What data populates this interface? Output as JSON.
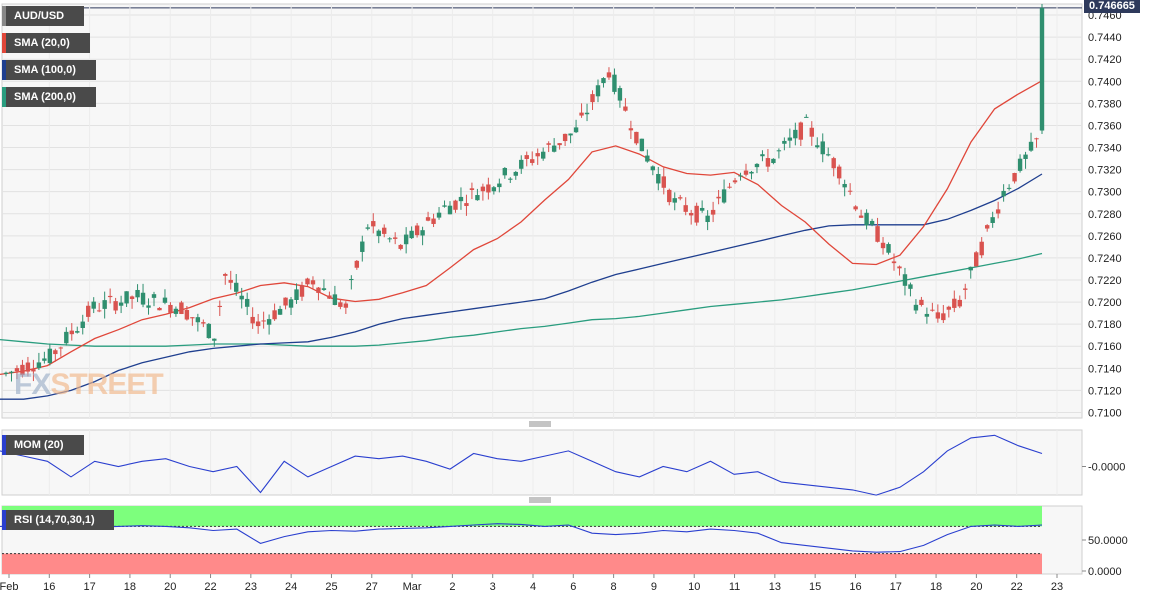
{
  "legend": {
    "symbol": "AUD/USD",
    "sma20": "SMA (20,0)",
    "sma100": "SMA (100,0)",
    "sma200": "SMA (200,0)",
    "mom": "MOM (20)",
    "rsi": "RSI (14,70,30,1)"
  },
  "current_price": "0.746665",
  "watermark": {
    "fx": "FX",
    "street": "STREET"
  },
  "colors": {
    "bull": "#2f8f6f",
    "bear": "#d9534f",
    "sma20": "#e0473a",
    "sma100": "#1f3f8f",
    "sma200": "#2a9d7f",
    "mom": "#2a3fcf",
    "rsi": "#2a3fcf",
    "rsi_over": "#7dff7d",
    "rsi_under": "#ff8a8a"
  },
  "chart_data": {
    "type": "candlestick",
    "symbol": "AUD/USD",
    "ylim": [
      0.7095,
      0.747
    ],
    "yticks": [
      "0.7100",
      "0.7120",
      "0.7140",
      "0.7160",
      "0.7180",
      "0.7200",
      "0.7220",
      "0.7240",
      "0.7260",
      "0.7280",
      "0.7300",
      "0.7320",
      "0.7340",
      "0.7360",
      "0.7380",
      "0.7400",
      "0.7420",
      "0.7440",
      "0.7460"
    ],
    "xticks": [
      "Feb",
      "16",
      "17",
      "18",
      "20",
      "22",
      "23",
      "24",
      "25",
      "27",
      "Mar",
      "2",
      "3",
      "4",
      "6",
      "8",
      "9",
      "10",
      "11",
      "13",
      "15",
      "16",
      "17",
      "18",
      "20",
      "22",
      "23"
    ],
    "sma20_label": "SMA (20,0)",
    "sma20": [
      [
        0.7137,
        0.7132
      ],
      [
        0.714,
        0.7135
      ],
      [
        0.7145,
        0.714
      ],
      [
        0.716,
        0.715
      ],
      [
        0.7172,
        0.7162
      ],
      [
        0.718,
        0.717
      ],
      [
        0.719,
        0.7178
      ],
      [
        0.7193,
        0.7185
      ],
      [
        0.72,
        0.719
      ],
      [
        0.721,
        0.7196
      ],
      [
        0.7216,
        0.72
      ],
      [
        0.7225,
        0.7205
      ],
      [
        0.7225,
        0.721
      ],
      [
        0.722,
        0.7208
      ],
      [
        0.7207,
        0.72
      ],
      [
        0.7203,
        0.7198
      ],
      [
        0.7205,
        0.72
      ],
      [
        0.7212,
        0.7205
      ],
      [
        0.722,
        0.721
      ],
      [
        0.724,
        0.7222
      ],
      [
        0.726,
        0.7235
      ],
      [
        0.727,
        0.7245
      ],
      [
        0.7285,
        0.726
      ],
      [
        0.7305,
        0.728
      ],
      [
        0.7322,
        0.73
      ],
      [
        0.7347,
        0.7325
      ],
      [
        0.7345,
        0.7338
      ],
      [
        0.7338,
        0.733
      ],
      [
        0.7325,
        0.732
      ],
      [
        0.7318,
        0.7315
      ],
      [
        0.7318,
        0.7312
      ],
      [
        0.732,
        0.7315
      ],
      [
        0.731,
        0.7303
      ],
      [
        0.7295,
        0.728
      ],
      [
        0.728,
        0.7265
      ],
      [
        0.726,
        0.7245
      ],
      [
        0.7238,
        0.7232
      ],
      [
        0.7233,
        0.7235
      ],
      [
        0.724,
        0.7245
      ],
      [
        0.7262,
        0.7275
      ],
      [
        0.7295,
        0.731
      ],
      [
        0.7335,
        0.7355
      ],
      [
        0.737,
        0.738
      ],
      [
        0.7385,
        0.7392
      ],
      [
        0.7397,
        0.7404
      ]
    ],
    "sma100_label": "SMA (100,0)",
    "sma100": [
      0.7112,
      0.7112,
      0.7115,
      0.712,
      0.7128,
      0.7138,
      0.7145,
      0.715,
      0.7155,
      0.7158,
      0.716,
      0.7162,
      0.7163,
      0.7164,
      0.7168,
      0.7173,
      0.718,
      0.7185,
      0.7188,
      0.7191,
      0.7194,
      0.7197,
      0.72,
      0.7203,
      0.721,
      0.7218,
      0.7225,
      0.723,
      0.7235,
      0.724,
      0.7245,
      0.725,
      0.7255,
      0.726,
      0.7265,
      0.7269,
      0.727,
      0.727,
      0.727,
      0.727,
      0.7275,
      0.7283,
      0.7292,
      0.7303,
      0.7316
    ],
    "sma200_label": "SMA (200,0)",
    "sma200": [
      0.7166,
      0.7164,
      0.7162,
      0.7161,
      0.716,
      0.716,
      0.716,
      0.716,
      0.7161,
      0.7162,
      0.7162,
      0.7162,
      0.7161,
      0.716,
      0.716,
      0.716,
      0.7161,
      0.7163,
      0.7165,
      0.7168,
      0.717,
      0.7173,
      0.7176,
      0.7178,
      0.7181,
      0.7184,
      0.7185,
      0.7187,
      0.719,
      0.7193,
      0.7196,
      0.7198,
      0.72,
      0.7202,
      0.7205,
      0.7208,
      0.7211,
      0.7215,
      0.7219,
      0.7223,
      0.7227,
      0.7231,
      0.7235,
      0.7239,
      0.7244
    ],
    "mom_label": "MOM (20)",
    "mom_ytick": "-0.0000",
    "mom": [
      0.3,
      0.2,
      0.1,
      -0.2,
      0.1,
      0.0,
      0.1,
      0.15,
      0.0,
      -0.1,
      0.0,
      -0.5,
      0.1,
      -0.2,
      0.0,
      0.2,
      0.15,
      0.2,
      0.1,
      -0.05,
      0.25,
      0.15,
      0.1,
      0.2,
      0.3,
      0.1,
      -0.1,
      -0.2,
      0.0,
      -0.1,
      0.1,
      -0.15,
      -0.1,
      -0.3,
      -0.35,
      -0.4,
      -0.45,
      -0.55,
      -0.4,
      -0.1,
      0.3,
      0.55,
      0.6,
      0.4,
      0.25
    ],
    "rsi_label": "RSI (14,70,30,1)",
    "rsi_yticks": [
      "50.0000",
      "0.0000"
    ],
    "rsi_overbought": 70,
    "rsi_oversold": 30,
    "rsi": [
      70,
      71,
      72,
      70,
      69,
      70,
      71,
      70,
      68,
      64,
      66,
      45,
      55,
      62,
      64,
      63,
      66,
      67,
      68,
      70,
      72,
      74,
      73,
      70,
      72,
      60,
      58,
      60,
      64,
      62,
      66,
      64,
      60,
      46,
      42,
      38,
      34,
      32,
      33,
      42,
      58,
      70,
      72,
      70,
      72
    ]
  }
}
